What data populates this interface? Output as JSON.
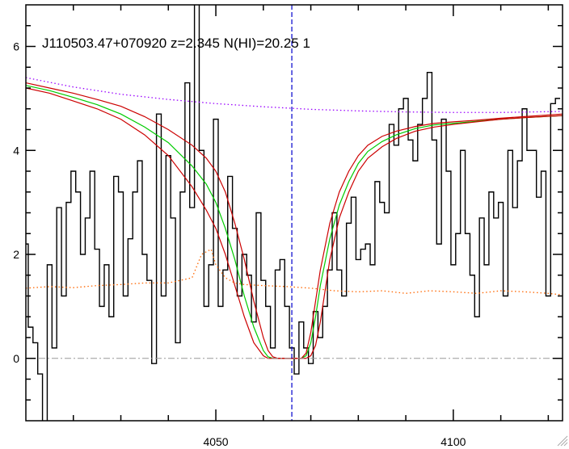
{
  "chart_data": {
    "type": "line",
    "title": "J110503.47+070920 z=2.345 N(HI)=20.25 1",
    "xlabel": "",
    "ylabel": "",
    "xlim": [
      4010,
      4123
    ],
    "ylim": [
      -1.2,
      6.8
    ],
    "xticks": [
      4050,
      4100
    ],
    "yticks": [
      0,
      2,
      4,
      6
    ],
    "grid": false,
    "legend": "none",
    "zero_level": 0,
    "line_center": 4066,
    "colors": {
      "spectrum": "#000000",
      "fit": "#00cc00",
      "fit_bounds": "#cc0000",
      "continuum": "#9900ff",
      "error": "#ff6600",
      "center_line": "#0000cc",
      "zero_line": "#999999"
    },
    "series": [
      {
        "style": "steps",
        "color": "#000000",
        "x": [
          4010,
          4011,
          4012,
          4013,
          4014,
          4015,
          4016,
          4017,
          4018,
          4019,
          4020,
          4021,
          4022,
          4023,
          4024,
          4025,
          4026,
          4027,
          4028,
          4029,
          4030,
          4031,
          4032,
          4033,
          4034,
          4035,
          4036,
          4037,
          4038,
          4039,
          4040,
          4041,
          4042,
          4043,
          4044,
          4045,
          4046,
          4047,
          4048,
          4049,
          4050,
          4051,
          4052,
          4053,
          4054,
          4055,
          4056,
          4057,
          4058,
          4059,
          4060,
          4061,
          4062,
          4063,
          4064,
          4065,
          4066,
          4067,
          4068,
          4069,
          4070,
          4071,
          4072,
          4073,
          4074,
          4075,
          4076,
          4077,
          4078,
          4079,
          4080,
          4081,
          4082,
          4083,
          4084,
          4085,
          4086,
          4087,
          4088,
          4089,
          4090,
          4091,
          4092,
          4093,
          4094,
          4095,
          4096,
          4097,
          4098,
          4099,
          4100,
          4101,
          4102,
          4103,
          4104,
          4105,
          4106,
          4107,
          4108,
          4109,
          4110,
          4111,
          4112,
          4113,
          4114,
          4115,
          4116,
          4117,
          4118,
          4119,
          4120,
          4121,
          4122
        ],
        "y": [
          2.2,
          0.6,
          0.3,
          -0.3,
          -1.5,
          1.8,
          0.2,
          2.9,
          1.2,
          3.0,
          3.6,
          3.2,
          2.0,
          2.7,
          3.6,
          2.1,
          1.0,
          1.8,
          0.8,
          3.5,
          3.2,
          1.2,
          2.3,
          3.2,
          3.8,
          2.0,
          1.5,
          -0.1,
          4.7,
          1.2,
          3.9,
          2.7,
          0.3,
          3.2,
          5.3,
          2.9,
          7.2,
          4.0,
          1.0,
          1.8,
          4.6,
          1.0,
          1.7,
          3.5,
          2.5,
          1.2,
          2.0,
          1.6,
          0.7,
          2.8,
          1.5,
          1.0,
          0.2,
          1.7,
          1.9,
          1.0,
          0.2,
          -0.3,
          0.7,
          0.2,
          -0.1,
          0.9,
          0.4,
          1.0,
          1.7,
          2.8,
          1.7,
          1.2,
          2.6,
          3.1,
          1.9,
          2.1,
          2.2,
          1.8,
          3.4,
          3.0,
          2.8,
          4.5,
          4.1,
          4.8,
          5.0,
          4.2,
          3.8,
          4.5,
          5.0,
          5.5,
          4.2,
          2.2,
          4.6,
          3.6,
          1.8,
          2.4,
          4.0,
          2.4,
          1.6,
          0.8,
          2.7,
          1.8,
          3.2,
          2.7,
          3.0,
          1.2,
          4.0,
          2.9,
          3.8,
          4.8,
          4.0,
          4.0,
          3.1,
          3.6,
          1.2,
          4.9,
          5.0
        ]
      },
      {
        "style": "line",
        "color": "#00cc00",
        "x": [
          4010,
          4015,
          4020,
          4025,
          4030,
          4035,
          4040,
          4045,
          4048,
          4050,
          4052,
          4054,
          4056,
          4058,
          4060,
          4061,
          4062,
          4063,
          4064,
          4065,
          4066,
          4067,
          4068,
          4069,
          4070,
          4071,
          4072,
          4074,
          4076,
          4078,
          4080,
          4082,
          4085,
          4088,
          4092,
          4096,
          4100,
          4105,
          4110,
          4115,
          4123
        ],
        "y": [
          5.25,
          5.15,
          5.02,
          4.88,
          4.7,
          4.45,
          4.15,
          3.7,
          3.35,
          3.0,
          2.5,
          1.9,
          1.2,
          0.6,
          0.15,
          0.03,
          0.0,
          0.0,
          0.0,
          0.0,
          0.0,
          0.0,
          0.0,
          0.05,
          0.3,
          0.8,
          1.4,
          2.3,
          2.95,
          3.4,
          3.75,
          3.98,
          4.17,
          4.3,
          4.42,
          4.49,
          4.52,
          4.56,
          4.6,
          4.63,
          4.67
        ]
      },
      {
        "style": "line",
        "color": "#cc0000",
        "x": [
          4010,
          4015,
          4020,
          4025,
          4030,
          4035,
          4040,
          4045,
          4048,
          4050,
          4052,
          4054,
          4056,
          4058,
          4060,
          4061,
          4062,
          4063,
          4064,
          4065,
          4066,
          4067,
          4068,
          4069,
          4070,
          4071,
          4072,
          4074,
          4076,
          4078,
          4080,
          4082,
          4085,
          4088,
          4092,
          4096,
          4100,
          4105,
          4110,
          4115,
          4123
        ],
        "y": [
          5.3,
          5.2,
          5.1,
          4.98,
          4.85,
          4.65,
          4.4,
          4.1,
          3.85,
          3.6,
          3.2,
          2.6,
          1.9,
          1.1,
          0.4,
          0.15,
          0.03,
          0.0,
          0.0,
          0.0,
          0.0,
          0.0,
          0.0,
          0.0,
          0.05,
          0.25,
          0.7,
          1.9,
          2.7,
          3.2,
          3.6,
          3.85,
          4.07,
          4.23,
          4.37,
          4.45,
          4.5,
          4.55,
          4.6,
          4.63,
          4.67
        ]
      },
      {
        "style": "line",
        "color": "#cc0000",
        "x": [
          4010,
          4015,
          4020,
          4025,
          4030,
          4035,
          4040,
          4045,
          4048,
          4050,
          4052,
          4054,
          4056,
          4058,
          4060,
          4061,
          4062,
          4063,
          4064,
          4065,
          4066,
          4067,
          4068,
          4069,
          4070,
          4071,
          4072,
          4074,
          4076,
          4078,
          4080,
          4082,
          4085,
          4088,
          4092,
          4096,
          4100,
          4105,
          4110,
          4115,
          4123
        ],
        "y": [
          5.2,
          5.1,
          4.95,
          4.8,
          4.6,
          4.3,
          3.9,
          3.3,
          2.85,
          2.5,
          2.0,
          1.4,
          0.8,
          0.3,
          0.05,
          0.0,
          0.0,
          0.0,
          0.0,
          0.0,
          0.0,
          0.0,
          0.0,
          0.1,
          0.5,
          1.1,
          1.7,
          2.6,
          3.2,
          3.6,
          3.9,
          4.1,
          4.27,
          4.37,
          4.46,
          4.52,
          4.55,
          4.58,
          4.62,
          4.65,
          4.7
        ]
      },
      {
        "style": "dotted",
        "color": "#9900ff",
        "x": [
          4010,
          4020,
          4030,
          4040,
          4050,
          4060,
          4066,
          4070,
          4080,
          4090,
          4100,
          4110,
          4123
        ],
        "y": [
          5.4,
          5.22,
          5.08,
          4.98,
          4.9,
          4.84,
          4.81,
          4.79,
          4.76,
          4.74,
          4.73,
          4.73,
          4.75
        ]
      },
      {
        "style": "dotted",
        "color": "#ff6600",
        "x": [
          4010,
          4015,
          4020,
          4025,
          4030,
          4035,
          4040,
          4045,
          4047,
          4049,
          4050,
          4052,
          4054,
          4056,
          4060,
          4065,
          4070,
          4075,
          4080,
          4085,
          4090,
          4095,
          4100,
          4105,
          4110,
          4115,
          4120,
          4123
        ],
        "y": [
          1.35,
          1.38,
          1.36,
          1.4,
          1.42,
          1.45,
          1.45,
          1.55,
          2.0,
          2.1,
          1.8,
          1.55,
          1.45,
          1.42,
          1.4,
          1.38,
          1.35,
          1.3,
          1.28,
          1.3,
          1.25,
          1.3,
          1.28,
          1.25,
          1.3,
          1.28,
          1.25,
          1.22
        ]
      }
    ]
  }
}
